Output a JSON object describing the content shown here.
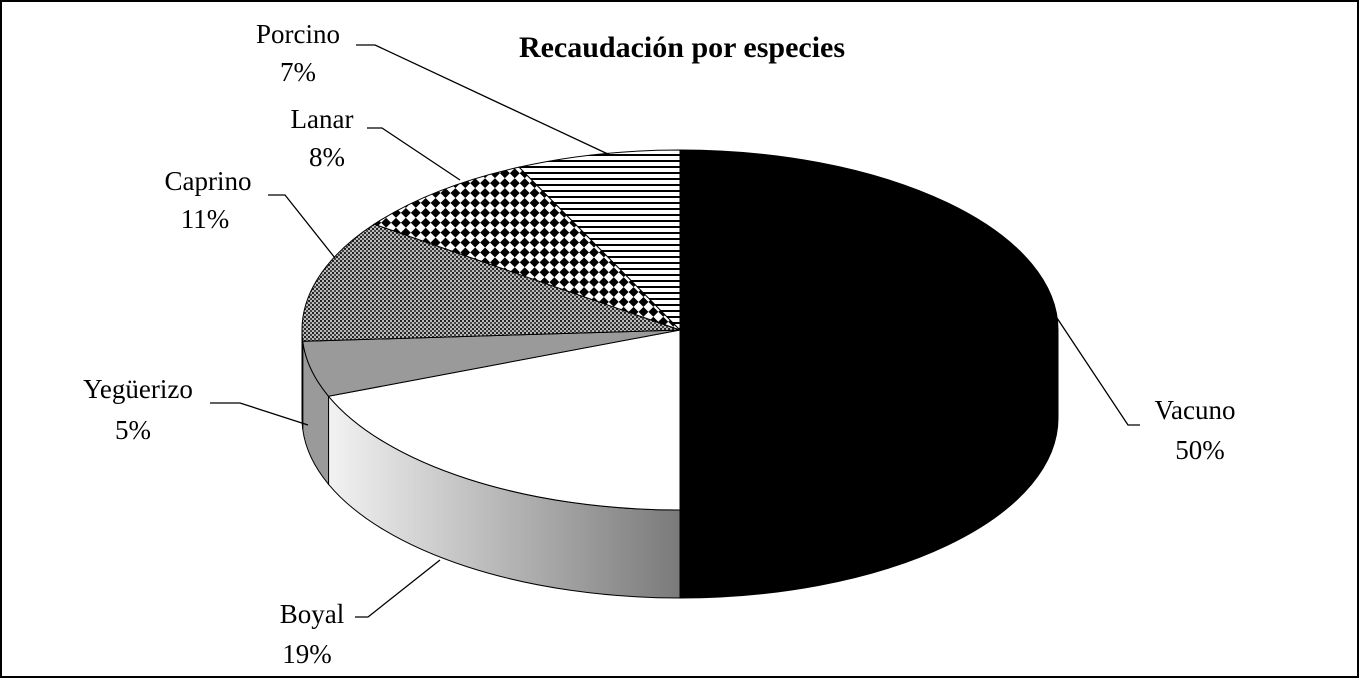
{
  "chart_data": {
    "type": "pie",
    "title": "Recaudación por especies",
    "categories": [
      "Vacuno",
      "Boyal",
      "Yegüerizo",
      "Caprino",
      "Lanar",
      "Porcino"
    ],
    "values": [
      50,
      19,
      5,
      11,
      8,
      7
    ],
    "value_labels": [
      "50%",
      "19%",
      "5%",
      "11%",
      "8%",
      "7%"
    ],
    "colors": [
      "#000000",
      "#ffffff",
      "#9a9a9a",
      "#6a6a6a",
      "#404040",
      "#ffffff"
    ],
    "patterns": [
      "solid",
      "solid",
      "solid",
      "dots",
      "checker",
      "hstripes"
    ],
    "three_d": true
  }
}
